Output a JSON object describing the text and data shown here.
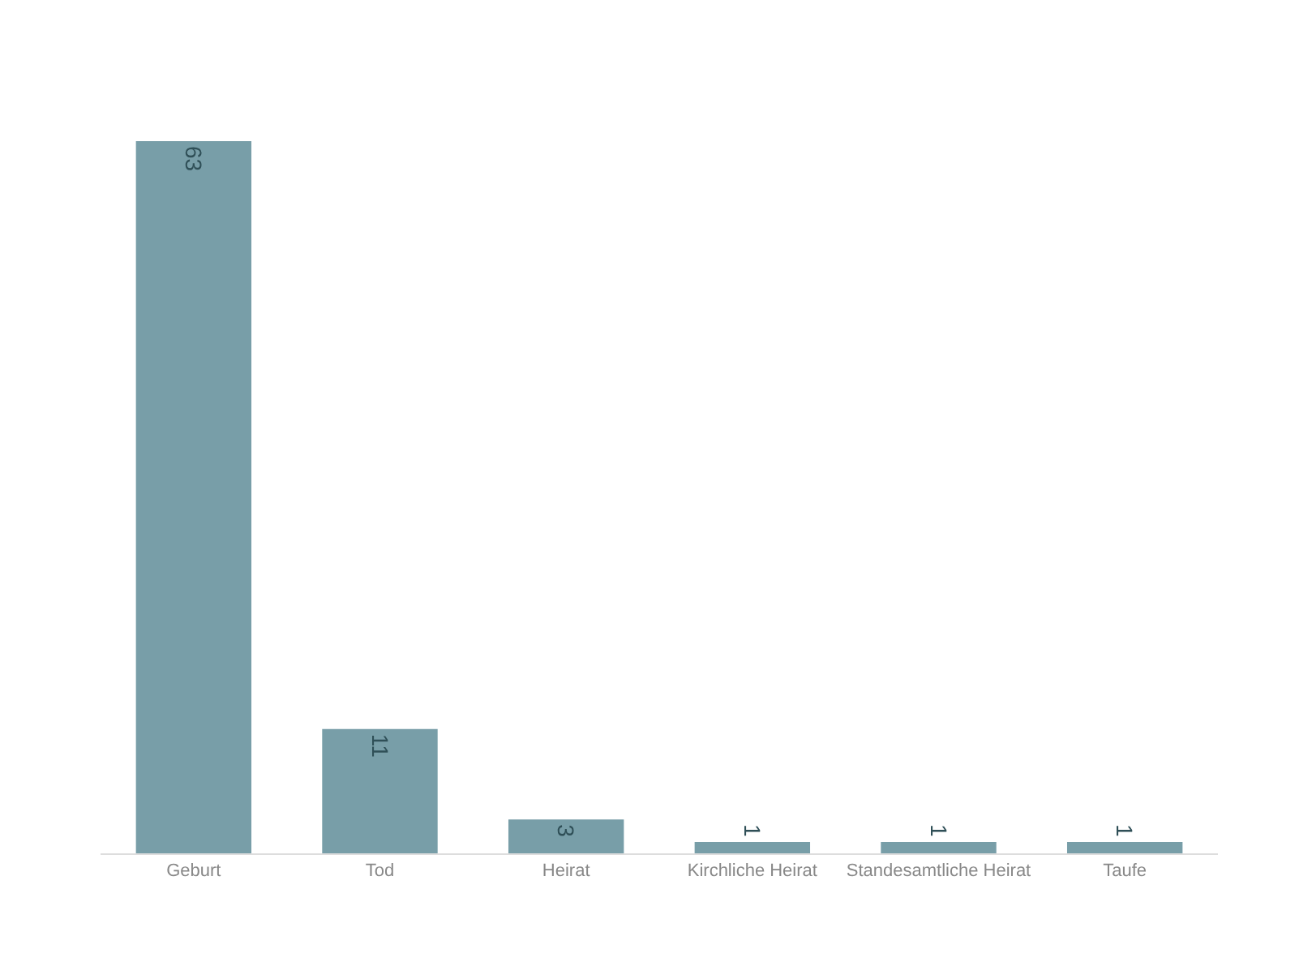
{
  "chart_data": {
    "type": "bar",
    "categories": [
      "Geburt",
      "Tod",
      "Heirat",
      "Kirchliche Heirat",
      "Standesamtliche Heirat",
      "Taufe"
    ],
    "values": [
      63,
      11,
      3,
      1,
      1,
      1
    ],
    "color": "#789ea8",
    "ylim": [
      0,
      63
    ],
    "data_labels": true,
    "tick_labels": "x",
    "legend": false
  }
}
